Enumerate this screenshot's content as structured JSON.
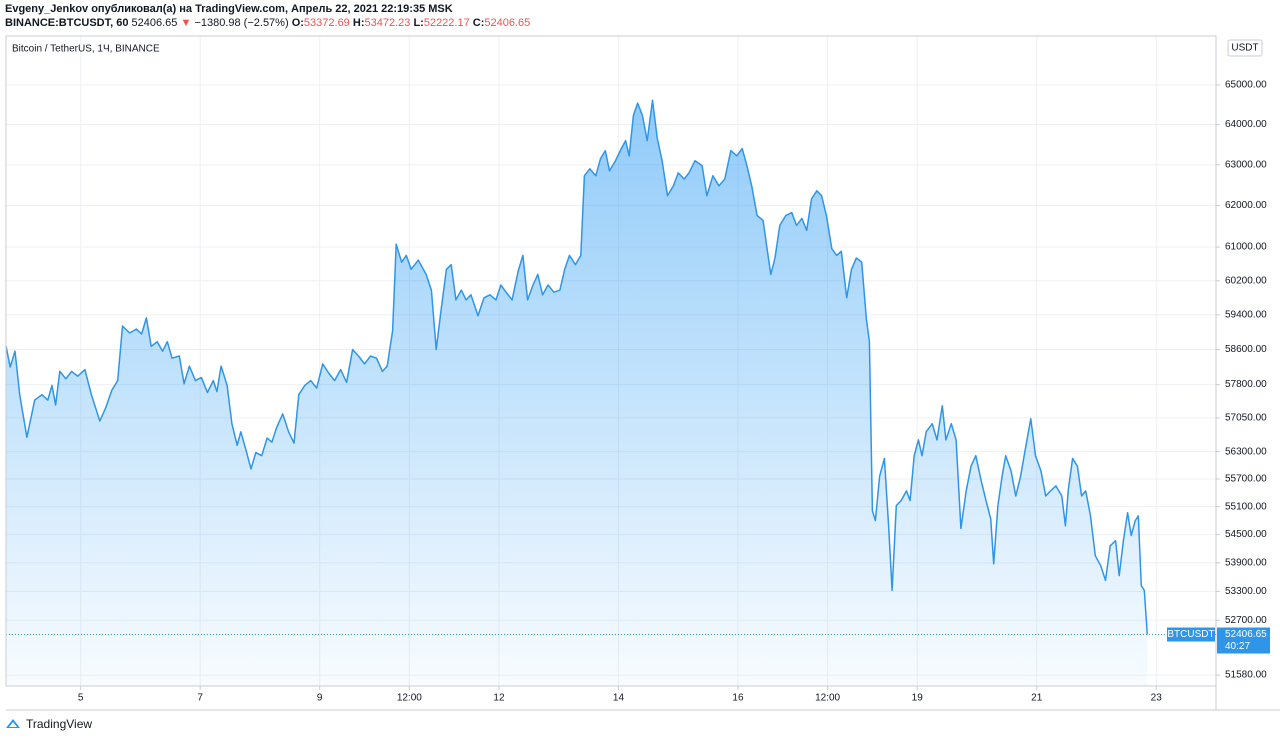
{
  "header": {
    "line1": "Evgeny_Jenkov опубликовал(а) на TradingView.com, Апрель 22, 2021 22:19:35 MSK",
    "symbol": "BINANCE:BTCUSDT, 60",
    "price": "52406.65",
    "arrow": "▼",
    "change": "−1380.98 (−2.57%)",
    "o_label": "O:",
    "o": "53372.69",
    "h_label": "H:",
    "h": "53472.23",
    "l_label": "L:",
    "l": "52222.17",
    "c_label": "C:",
    "c": "52406.65"
  },
  "footer": {
    "brand": "TradingView"
  },
  "chart_data": {
    "type": "area",
    "title": "Bitcoin / TetherUS, 1Ч, BINANCE",
    "currency": "USDT",
    "color": "#2f95e8",
    "grid": true,
    "log_scale": true,
    "xlim": [
      3.75,
      24.0
    ],
    "ylim": [
      51360,
      66260
    ],
    "xticks": [
      5,
      7,
      9,
      {
        "value": 10.5,
        "label": "12:00"
      },
      12,
      14,
      16,
      {
        "value": 17.5,
        "label": "12:00"
      },
      19,
      21,
      23
    ],
    "yticks": [
      {
        "value": 65000,
        "label": "65000.00"
      },
      {
        "value": 64000,
        "label": "64000.00"
      },
      {
        "value": 63000,
        "label": "63000.00"
      },
      {
        "value": 62000,
        "label": "62000.00"
      },
      {
        "value": 61000,
        "label": "61000.00"
      },
      {
        "value": 60200,
        "label": "60200.00"
      },
      {
        "value": 59400,
        "label": "59400.00"
      },
      {
        "value": 58600,
        "label": "58600.00"
      },
      {
        "value": 57800,
        "label": "57800.00"
      },
      {
        "value": 57050,
        "label": "57050.00"
      },
      {
        "value": 56300,
        "label": "56300.00"
      },
      {
        "value": 55700,
        "label": "55700.00"
      },
      {
        "value": 55100,
        "label": "55100.00"
      },
      {
        "value": 54500,
        "label": "54500.00"
      },
      {
        "value": 53900,
        "label": "53900.00"
      },
      {
        "value": 53300,
        "label": "53300.00"
      },
      {
        "value": 52700,
        "label": "52700.00"
      },
      {
        "value": 51580,
        "label": "51580.00"
      }
    ],
    "last_price": {
      "symbol": "BTCUSDT",
      "value": 52406.65,
      "countdown": "40:27"
    },
    "x": [
      3.75,
      3.82,
      3.9,
      3.98,
      4.1,
      4.23,
      4.35,
      4.45,
      4.52,
      4.58,
      4.65,
      4.75,
      4.85,
      4.95,
      5.07,
      5.18,
      5.32,
      5.42,
      5.52,
      5.62,
      5.7,
      5.82,
      5.93,
      6.02,
      6.1,
      6.18,
      6.28,
      6.37,
      6.45,
      6.53,
      6.65,
      6.73,
      6.82,
      6.92,
      7.02,
      7.12,
      7.22,
      7.28,
      7.35,
      7.45,
      7.53,
      7.62,
      7.68,
      7.77,
      7.85,
      7.93,
      8.03,
      8.12,
      8.2,
      8.28,
      8.38,
      8.48,
      8.57,
      8.65,
      8.75,
      8.85,
      8.95,
      9.05,
      9.15,
      9.25,
      9.35,
      9.45,
      9.55,
      9.65,
      9.75,
      9.85,
      9.95,
      10.05,
      10.13,
      10.22,
      10.28,
      10.37,
      10.45,
      10.53,
      10.65,
      10.78,
      10.87,
      10.95,
      11.03,
      11.12,
      11.2,
      11.28,
      11.37,
      11.45,
      11.53,
      11.65,
      11.75,
      11.85,
      11.95,
      12.03,
      12.12,
      12.22,
      12.32,
      12.4,
      12.48,
      12.57,
      12.65,
      12.73,
      12.82,
      12.92,
      13.02,
      13.1,
      13.18,
      13.28,
      13.37,
      13.43,
      13.52,
      13.62,
      13.7,
      13.78,
      13.85,
      13.95,
      14.03,
      14.12,
      14.18,
      14.25,
      14.32,
      14.4,
      14.48,
      14.57,
      14.65,
      14.73,
      14.82,
      14.92,
      15.0,
      15.1,
      15.18,
      15.28,
      15.4,
      15.48,
      15.58,
      15.68,
      15.78,
      15.88,
      15.98,
      16.07,
      16.15,
      16.23,
      16.32,
      16.42,
      16.48,
      16.55,
      16.62,
      16.7,
      16.8,
      16.9,
      16.98,
      17.07,
      17.15,
      17.23,
      17.32,
      17.4,
      17.48,
      17.57,
      17.65,
      17.73,
      17.82,
      17.9,
      17.98,
      18.07,
      18.15,
      18.2,
      18.25,
      18.3,
      18.37,
      18.45,
      18.52,
      18.58,
      18.65,
      18.73,
      18.82,
      18.88,
      18.95,
      19.02,
      19.08,
      19.15,
      19.25,
      19.33,
      19.42,
      19.48,
      19.57,
      19.65,
      19.73,
      19.82,
      19.9,
      19.98,
      20.07,
      20.15,
      20.23,
      20.28,
      20.35,
      20.42,
      20.48,
      20.57,
      20.65,
      20.73,
      20.82,
      20.9,
      20.98,
      21.07,
      21.15,
      21.23,
      21.32,
      21.42,
      21.48,
      21.53,
      21.6,
      21.68,
      21.75,
      21.82,
      21.9,
      21.98,
      22.07,
      22.15,
      22.23,
      22.32,
      22.38,
      22.45,
      22.52,
      22.58,
      22.65,
      22.7,
      22.75,
      22.8,
      22.85
    ],
    "values": [
      58680,
      58200,
      58560,
      57570,
      56620,
      57450,
      57570,
      57450,
      57780,
      57340,
      58100,
      57930,
      58100,
      57990,
      58140,
      57570,
      56980,
      57280,
      57670,
      57890,
      59140,
      58980,
      59070,
      58960,
      59330,
      58670,
      58780,
      58560,
      58780,
      58400,
      58450,
      57820,
      58220,
      57890,
      57960,
      57620,
      57890,
      57640,
      58220,
      57780,
      56920,
      56440,
      56740,
      56320,
      55920,
      56280,
      56210,
      56600,
      56510,
      56840,
      57140,
      56740,
      56490,
      57570,
      57780,
      57890,
      57720,
      58270,
      58060,
      57890,
      58140,
      57850,
      58600,
      58450,
      58270,
      58450,
      58400,
      58100,
      58220,
      59030,
      61070,
      60640,
      60800,
      60470,
      60690,
      60350,
      59980,
      58600,
      59500,
      60470,
      60580,
      59750,
      59980,
      59750,
      59870,
      59380,
      59800,
      59870,
      59750,
      60100,
      59930,
      59750,
      60420,
      60800,
      59750,
      60100,
      60350,
      59870,
      60100,
      59930,
      59980,
      60470,
      60800,
      60580,
      60800,
      62730,
      62900,
      62730,
      63150,
      63350,
      62850,
      63100,
      63350,
      63600,
      63220,
      64230,
      64540,
      64230,
      63600,
      64610,
      63650,
      63100,
      62240,
      62480,
      62800,
      62650,
      62800,
      63100,
      62980,
      62240,
      62730,
      62480,
      62650,
      63350,
      63220,
      63400,
      62980,
      62480,
      61760,
      61640,
      61020,
      60350,
      60740,
      61520,
      61760,
      61830,
      61520,
      61690,
      61400,
      62160,
      62360,
      62240,
      61760,
      60960,
      60800,
      60900,
      59800,
      60470,
      60740,
      60640,
      59300,
      58780,
      55010,
      54800,
      55760,
      56150,
      54690,
      53320,
      55120,
      55230,
      55440,
      55230,
      56210,
      56560,
      56210,
      56740,
      56920,
      56560,
      57320,
      56560,
      56920,
      56560,
      54630,
      55440,
      55980,
      56210,
      55660,
      55230,
      54840,
      53880,
      55120,
      55760,
      56210,
      55880,
      55330,
      55760,
      56440,
      57030,
      56210,
      55880,
      55330,
      55440,
      55550,
      55330,
      54690,
      55480,
      56150,
      55980,
      55330,
      55440,
      54900,
      54050,
      53840,
      53530,
      54260,
      54370,
      53630,
      54370,
      54970,
      54480,
      54800,
      54900,
      53420,
      53320,
      52406.65
    ]
  }
}
